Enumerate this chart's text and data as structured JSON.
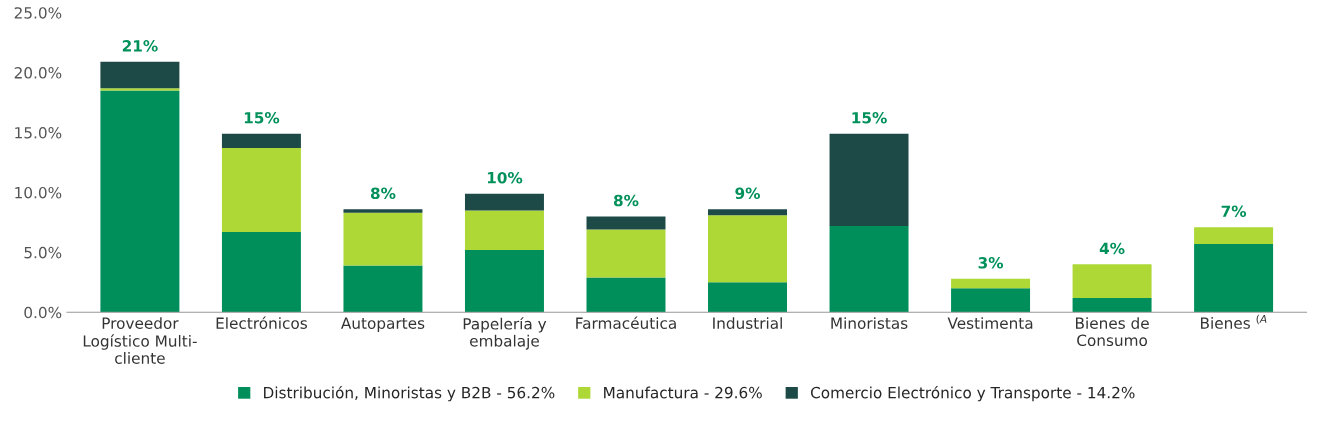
{
  "chart_data": {
    "type": "bar",
    "stacked": true,
    "categories": [
      "Proveedor\nLogístico Multi-\ncliente",
      "Electrónicos",
      "Autopartes",
      "Papelería y\nembalaje",
      "Farmacéutica",
      "Industrial",
      "Minoristas",
      "Vestimenta",
      "Bienes de\nConsumo",
      "Bienes $^{(A}$"
    ],
    "series": [
      {
        "name": "Distribución, Minoristas y B2B - 56.2%",
        "color": "#008f5a",
        "values": [
          18.5,
          6.7,
          3.9,
          5.2,
          2.9,
          2.5,
          7.2,
          2.0,
          1.2,
          5.7
        ]
      },
      {
        "name": "Manufactura - 29.6%",
        "color": "#add836",
        "values": [
          0.2,
          7.0,
          4.4,
          3.3,
          4.0,
          5.6,
          null,
          0.8,
          2.8,
          1.4
        ]
      },
      {
        "name": "Comercio Electrónico y Transporte - 14.2%",
        "color": "#1d4a47",
        "values": [
          2.2,
          1.2,
          0.3,
          1.4,
          1.1,
          0.5,
          7.7,
          null,
          null,
          null
        ]
      }
    ],
    "totals": [
      "21%",
      "15%",
      "8%",
      "10%",
      "8%",
      "9%",
      "15%",
      "3%",
      "4%",
      "7%"
    ],
    "ylim": [
      0,
      25
    ],
    "yticks": [
      {
        "value": 0,
        "label": "0.0%"
      },
      {
        "value": 5,
        "label": "5.0%"
      },
      {
        "value": 10,
        "label": "10.0%"
      },
      {
        "value": 15,
        "label": "15.0%"
      },
      {
        "value": 20,
        "label": "20.0%"
      },
      {
        "value": 25,
        "label": "25.0%"
      }
    ],
    "legend": "bottom",
    "grid": false
  }
}
